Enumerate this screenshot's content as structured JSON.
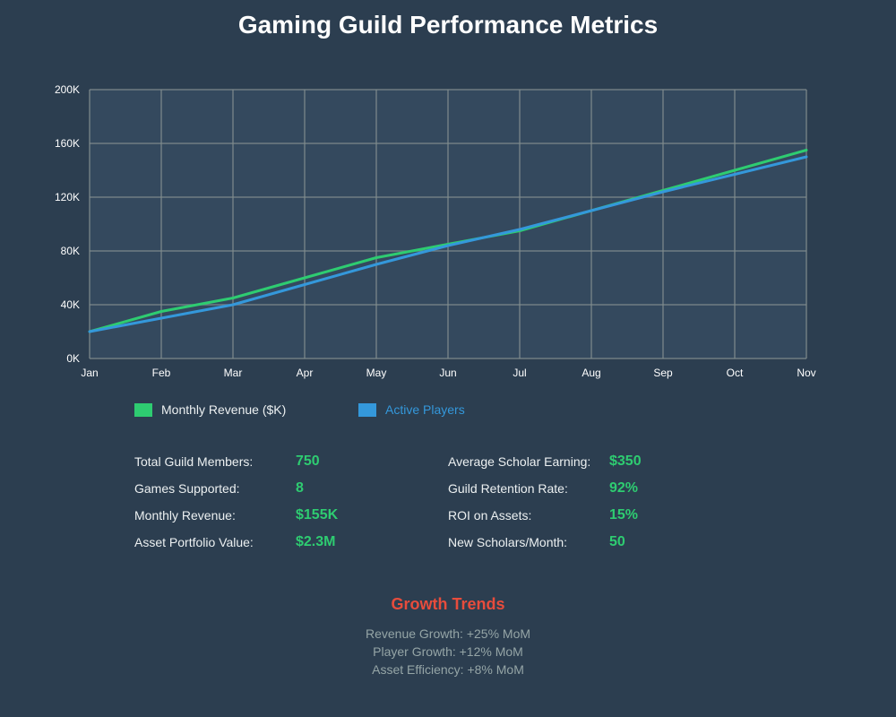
{
  "title": "Gaming Guild Performance Metrics",
  "chart_data": {
    "type": "line",
    "categories": [
      "Jan",
      "Feb",
      "Mar",
      "Apr",
      "May",
      "Jun",
      "Jul",
      "Aug",
      "Sep",
      "Oct",
      "Nov"
    ],
    "y_tick_labels": [
      "0K",
      "40K",
      "80K",
      "120K",
      "160K",
      "200K"
    ],
    "y_ticks": [
      0,
      40000,
      80000,
      120000,
      160000,
      200000
    ],
    "ylim": [
      0,
      200000
    ],
    "grid": true,
    "legend_position": "bottom-left",
    "series": [
      {
        "name": "Monthly Revenue ($K)",
        "color": "#2ecc71",
        "values": [
          20000,
          35000,
          45000,
          60000,
          75000,
          85000,
          95000,
          110000,
          125000,
          140000,
          155000
        ]
      },
      {
        "name": "Active Players",
        "color": "#3498db",
        "values": [
          20000,
          30000,
          40000,
          55000,
          70000,
          84000,
          96000,
          110000,
          124000,
          137000,
          150000
        ]
      }
    ]
  },
  "colors": {
    "background": "#2c3e50",
    "plot_background": "#34495e",
    "grid": "#7f8c8d",
    "accent_green": "#2ecc71",
    "accent_blue": "#3498db",
    "accent_red": "#e74c3c",
    "muted_text": "#95a5a6"
  },
  "legend": {
    "revenue_label": "Monthly Revenue ($K)",
    "players_label": "Active Players"
  },
  "stats": {
    "left": [
      {
        "label": "Total Guild Members:",
        "value": "750"
      },
      {
        "label": "Games Supported:",
        "value": "8"
      },
      {
        "label": "Monthly Revenue:",
        "value": "$155K"
      },
      {
        "label": "Asset Portfolio Value:",
        "value": "$2.3M"
      }
    ],
    "right": [
      {
        "label": "Average Scholar Earning:",
        "value": "$350"
      },
      {
        "label": "Guild Retention Rate:",
        "value": "92%"
      },
      {
        "label": "ROI on Assets:",
        "value": "15%"
      },
      {
        "label": "New Scholars/Month:",
        "value": "50"
      }
    ]
  },
  "trends": {
    "title": "Growth Trends",
    "lines": [
      "Revenue Growth: +25% MoM",
      "Player Growth: +12% MoM",
      "Asset Efficiency: +8% MoM"
    ]
  }
}
